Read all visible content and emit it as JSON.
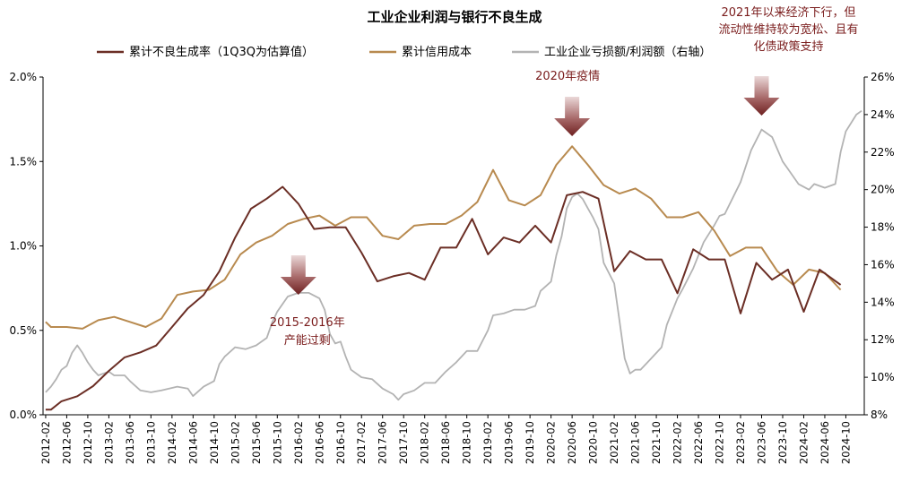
{
  "chart_data": {
    "type": "line",
    "title": "工业企业利润与银行不良生成",
    "series": [
      {
        "name": "累计不良生成率（1Q3Q为估算值）",
        "axis": "left",
        "color": "#6b2e25",
        "points": [
          [
            "2012-02",
            0.03
          ],
          [
            "2012-03",
            0.03
          ],
          [
            "2012-05",
            0.08
          ],
          [
            "2012-08",
            0.11
          ],
          [
            "2012-11",
            0.17
          ],
          [
            "2013-02",
            0.26
          ],
          [
            "2013-05",
            0.34
          ],
          [
            "2013-08",
            0.37
          ],
          [
            "2013-11",
            0.41
          ],
          [
            "2014-02",
            0.52
          ],
          [
            "2014-05",
            0.63
          ],
          [
            "2014-08",
            0.71
          ],
          [
            "2014-11",
            0.85
          ],
          [
            "2015-02",
            1.05
          ],
          [
            "2015-05",
            1.22
          ],
          [
            "2015-08",
            1.28
          ],
          [
            "2015-11",
            1.35
          ],
          [
            "2016-02",
            1.25
          ],
          [
            "2016-05",
            1.1
          ],
          [
            "2016-08",
            1.11
          ],
          [
            "2016-11",
            1.11
          ],
          [
            "2017-02",
            0.96
          ],
          [
            "2017-05",
            0.79
          ],
          [
            "2017-08",
            0.82
          ],
          [
            "2017-11",
            0.84
          ],
          [
            "2018-02",
            0.8
          ],
          [
            "2018-05",
            0.99
          ],
          [
            "2018-08",
            0.99
          ],
          [
            "2018-11",
            1.16
          ],
          [
            "2019-02",
            0.95
          ],
          [
            "2019-05",
            1.05
          ],
          [
            "2019-08",
            1.02
          ],
          [
            "2019-11",
            1.12
          ],
          [
            "2020-02",
            1.02
          ],
          [
            "2020-05",
            1.3
          ],
          [
            "2020-08",
            1.32
          ],
          [
            "2020-11",
            1.28
          ],
          [
            "2021-02",
            0.85
          ],
          [
            "2021-05",
            0.97
          ],
          [
            "2021-08",
            0.92
          ],
          [
            "2021-11",
            0.92
          ],
          [
            "2022-02",
            0.72
          ],
          [
            "2022-05",
            0.98
          ],
          [
            "2022-08",
            0.92
          ],
          [
            "2022-11",
            0.92
          ],
          [
            "2023-02",
            0.6
          ],
          [
            "2023-05",
            0.9
          ],
          [
            "2023-08",
            0.8
          ],
          [
            "2023-11",
            0.86
          ],
          [
            "2024-02",
            0.61
          ],
          [
            "2024-05",
            0.86
          ],
          [
            "2024-09",
            0.77
          ]
        ]
      },
      {
        "name": "累计信用成本",
        "axis": "left",
        "color": "#b88a4f",
        "points": [
          [
            "2012-02",
            0.55
          ],
          [
            "2012-03",
            0.52
          ],
          [
            "2012-06",
            0.52
          ],
          [
            "2012-09",
            0.51
          ],
          [
            "2012-12",
            0.56
          ],
          [
            "2013-03",
            0.58
          ],
          [
            "2013-06",
            0.55
          ],
          [
            "2013-09",
            0.52
          ],
          [
            "2013-12",
            0.57
          ],
          [
            "2014-03",
            0.71
          ],
          [
            "2014-06",
            0.73
          ],
          [
            "2014-09",
            0.74
          ],
          [
            "2014-12",
            0.8
          ],
          [
            "2015-03",
            0.95
          ],
          [
            "2015-06",
            1.02
          ],
          [
            "2015-09",
            1.06
          ],
          [
            "2015-12",
            1.13
          ],
          [
            "2016-03",
            1.16
          ],
          [
            "2016-06",
            1.18
          ],
          [
            "2016-09",
            1.12
          ],
          [
            "2016-12",
            1.17
          ],
          [
            "2017-03",
            1.17
          ],
          [
            "2017-06",
            1.06
          ],
          [
            "2017-09",
            1.04
          ],
          [
            "2017-12",
            1.12
          ],
          [
            "2018-03",
            1.13
          ],
          [
            "2018-06",
            1.13
          ],
          [
            "2018-09",
            1.18
          ],
          [
            "2018-12",
            1.26
          ],
          [
            "2019-03",
            1.45
          ],
          [
            "2019-06",
            1.27
          ],
          [
            "2019-09",
            1.24
          ],
          [
            "2019-12",
            1.3
          ],
          [
            "2020-03",
            1.48
          ],
          [
            "2020-06",
            1.59
          ],
          [
            "2020-09",
            1.48
          ],
          [
            "2020-12",
            1.36
          ],
          [
            "2021-03",
            1.31
          ],
          [
            "2021-06",
            1.34
          ],
          [
            "2021-09",
            1.28
          ],
          [
            "2021-12",
            1.17
          ],
          [
            "2022-03",
            1.17
          ],
          [
            "2022-06",
            1.2
          ],
          [
            "2022-09",
            1.09
          ],
          [
            "2022-12",
            0.94
          ],
          [
            "2023-03",
            0.99
          ],
          [
            "2023-06",
            0.99
          ],
          [
            "2023-09",
            0.85
          ],
          [
            "2023-12",
            0.77
          ],
          [
            "2024-03",
            0.86
          ],
          [
            "2024-06",
            0.84
          ],
          [
            "2024-09",
            0.74
          ]
        ]
      },
      {
        "name": "工业企业亏损额/利润额（右轴）",
        "axis": "right",
        "color": "#b3b3b3",
        "points": [
          [
            "2012-02",
            9.2
          ],
          [
            "2012-03",
            9.5
          ],
          [
            "2012-04",
            9.9
          ],
          [
            "2012-05",
            10.4
          ],
          [
            "2012-06",
            10.6
          ],
          [
            "2012-07",
            11.3
          ],
          [
            "2012-08",
            11.7
          ],
          [
            "2012-09",
            11.3
          ],
          [
            "2012-10",
            10.8
          ],
          [
            "2012-11",
            10.4
          ],
          [
            "2012-12",
            10.1
          ],
          [
            "2013-02",
            10.3
          ],
          [
            "2013-03",
            10.1
          ],
          [
            "2013-05",
            10.1
          ],
          [
            "2013-06",
            9.8
          ],
          [
            "2013-08",
            9.3
          ],
          [
            "2013-10",
            9.2
          ],
          [
            "2013-12",
            9.3
          ],
          [
            "2014-03",
            9.5
          ],
          [
            "2014-05",
            9.4
          ],
          [
            "2014-06",
            9.0
          ],
          [
            "2014-08",
            9.5
          ],
          [
            "2014-10",
            9.8
          ],
          [
            "2014-11",
            10.7
          ],
          [
            "2014-12",
            11.1
          ],
          [
            "2015-02",
            11.6
          ],
          [
            "2015-04",
            11.5
          ],
          [
            "2015-06",
            11.7
          ],
          [
            "2015-08",
            12.1
          ],
          [
            "2015-09",
            12.9
          ],
          [
            "2015-10",
            13.5
          ],
          [
            "2015-12",
            14.3
          ],
          [
            "2016-02",
            14.5
          ],
          [
            "2016-04",
            14.5
          ],
          [
            "2016-06",
            14.2
          ],
          [
            "2016-07",
            13.6
          ],
          [
            "2016-08",
            12.3
          ],
          [
            "2016-09",
            11.8
          ],
          [
            "2016-10",
            11.9
          ],
          [
            "2016-11",
            11.1
          ],
          [
            "2016-12",
            10.4
          ],
          [
            "2017-02",
            10.0
          ],
          [
            "2017-04",
            9.9
          ],
          [
            "2017-06",
            9.4
          ],
          [
            "2017-08",
            9.1
          ],
          [
            "2017-09",
            8.8
          ],
          [
            "2017-10",
            9.1
          ],
          [
            "2017-12",
            9.3
          ],
          [
            "2018-02",
            9.7
          ],
          [
            "2018-04",
            9.7
          ],
          [
            "2018-06",
            10.3
          ],
          [
            "2018-08",
            10.8
          ],
          [
            "2018-10",
            11.4
          ],
          [
            "2018-12",
            11.4
          ],
          [
            "2019-02",
            12.5
          ],
          [
            "2019-03",
            13.3
          ],
          [
            "2019-05",
            13.4
          ],
          [
            "2019-07",
            13.6
          ],
          [
            "2019-09",
            13.6
          ],
          [
            "2019-11",
            13.8
          ],
          [
            "2019-12",
            14.6
          ],
          [
            "2020-02",
            15.1
          ],
          [
            "2020-03",
            16.5
          ],
          [
            "2020-04",
            17.5
          ],
          [
            "2020-05",
            19.0
          ],
          [
            "2020-06",
            19.6
          ],
          [
            "2020-07",
            19.8
          ],
          [
            "2020-08",
            19.5
          ],
          [
            "2020-09",
            19.0
          ],
          [
            "2020-10",
            18.5
          ],
          [
            "2020-11",
            17.9
          ],
          [
            "2020-12",
            16.1
          ],
          [
            "2021-02",
            15.0
          ],
          [
            "2021-03",
            13.0
          ],
          [
            "2021-04",
            11.0
          ],
          [
            "2021-05",
            10.2
          ],
          [
            "2021-06",
            10.4
          ],
          [
            "2021-07",
            10.4
          ],
          [
            "2021-09",
            11.0
          ],
          [
            "2021-11",
            11.6
          ],
          [
            "2021-12",
            12.8
          ],
          [
            "2022-02",
            14.2
          ],
          [
            "2022-03",
            14.7
          ],
          [
            "2022-05",
            15.8
          ],
          [
            "2022-07",
            17.2
          ],
          [
            "2022-09",
            18.1
          ],
          [
            "2022-10",
            18.6
          ],
          [
            "2022-11",
            18.7
          ],
          [
            "2023-02",
            20.4
          ],
          [
            "2023-04",
            22.1
          ],
          [
            "2023-06",
            23.2
          ],
          [
            "2023-08",
            22.8
          ],
          [
            "2023-10",
            21.5
          ],
          [
            "2023-11",
            21.1
          ],
          [
            "2024-01",
            20.3
          ],
          [
            "2024-03",
            20.0
          ],
          [
            "2024-04",
            20.3
          ],
          [
            "2024-06",
            20.1
          ],
          [
            "2024-08",
            20.3
          ],
          [
            "2024-09",
            22.0
          ],
          [
            "2024-10",
            23.1
          ],
          [
            "2024-12",
            24.0
          ],
          [
            "2025-01",
            24.2
          ]
        ]
      }
    ],
    "y_left": {
      "range": [
        0,
        2.0
      ],
      "ticks": [
        "0.0%",
        "0.5%",
        "1.0%",
        "1.5%",
        "2.0%"
      ]
    },
    "y_right": {
      "range": [
        8,
        26
      ],
      "ticks": [
        "8%",
        "10%",
        "12%",
        "14%",
        "16%",
        "18%",
        "20%",
        "22%",
        "24%",
        "26%"
      ]
    },
    "x_range": [
      "2012-02",
      "2025-01"
    ],
    "x_ticks": [
      "2012-02",
      "2012-06",
      "2012-10",
      "2013-02",
      "2013-06",
      "2013-10",
      "2014-02",
      "2014-06",
      "2014-10",
      "2015-02",
      "2015-06",
      "2015-10",
      "2016-02",
      "2016-06",
      "2016-10",
      "2017-02",
      "2017-06",
      "2017-10",
      "2018-02",
      "2018-06",
      "2018-10",
      "2019-02",
      "2019-06",
      "2019-10",
      "2020-02",
      "2020-06",
      "2020-10",
      "2021-02",
      "2021-06",
      "2021-10",
      "2022-02",
      "2022-06",
      "2022-10",
      "2023-02",
      "2023-06",
      "2023-10",
      "2024-02",
      "2024-06",
      "2024-10"
    ],
    "grid": false,
    "legend": "top",
    "annotations": [
      {
        "text_lines": [
          "2015-2016年",
          "产能过剩"
        ],
        "arrow_at": "2016-02"
      },
      {
        "text_lines": [
          "2020年疫情"
        ],
        "arrow_at": "2020-06"
      },
      {
        "text_lines": [
          "2021年以来经济下行，但",
          "流动性维持较为宽松、且有",
          "化债政策支持"
        ],
        "arrow_at": "2023-06"
      }
    ]
  }
}
